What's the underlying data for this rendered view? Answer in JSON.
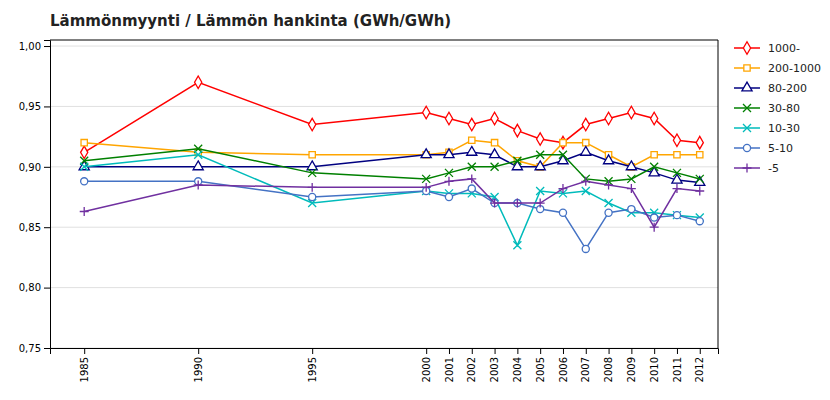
{
  "chart_data": {
    "type": "line",
    "title": "Lämmönmyynti / Lämmön hankinta (GWh/GWh)",
    "x": [
      1985,
      1990,
      1995,
      2000,
      2001,
      2002,
      2003,
      2004,
      2005,
      2006,
      2007,
      2008,
      2009,
      2010,
      2011,
      2012
    ],
    "series": [
      {
        "name": "1000-",
        "color": "#FF0000",
        "marker": "diamond",
        "values": [
          0.912,
          0.97,
          0.935,
          0.945,
          0.94,
          0.935,
          0.94,
          0.93,
          0.923,
          0.92,
          0.935,
          0.94,
          0.945,
          0.94,
          0.922,
          0.92
        ]
      },
      {
        "name": "200-1000",
        "color": "#FFA500",
        "marker": "square",
        "values": [
          0.92,
          0.912,
          0.91,
          0.91,
          0.912,
          0.922,
          0.92,
          0.905,
          0.9,
          0.92,
          0.92,
          0.91,
          0.9,
          0.91,
          0.91,
          0.91
        ]
      },
      {
        "name": "80-200",
        "color": "#000080",
        "marker": "triangle",
        "values": [
          0.9,
          0.9,
          0.9,
          0.91,
          0.91,
          0.912,
          0.91,
          0.9,
          0.9,
          0.905,
          0.912,
          0.905,
          0.9,
          0.895,
          0.889,
          0.887
        ]
      },
      {
        "name": "30-80",
        "color": "#008000",
        "marker": "x",
        "values": [
          0.905,
          0.915,
          0.895,
          0.89,
          0.895,
          0.9,
          0.9,
          0.905,
          0.91,
          0.91,
          0.89,
          0.888,
          0.89,
          0.9,
          0.895,
          0.89
        ]
      },
      {
        "name": "10-30",
        "color": "#00BBBB",
        "marker": "x",
        "values": [
          0.9,
          0.91,
          0.87,
          0.88,
          0.878,
          0.878,
          0.875,
          0.835,
          0.88,
          0.878,
          0.88,
          0.87,
          0.862,
          0.862,
          0.86,
          0.858
        ]
      },
      {
        "name": "5-10",
        "color": "#4472C4",
        "marker": "circle",
        "values": [
          0.888,
          0.888,
          0.875,
          0.88,
          0.875,
          0.882,
          0.87,
          0.87,
          0.865,
          0.862,
          0.832,
          0.862,
          0.865,
          0.858,
          0.86,
          0.855
        ]
      },
      {
        "name": "-5",
        "color": "#7030A0",
        "marker": "plus",
        "values": [
          0.863,
          0.885,
          0.883,
          0.883,
          0.888,
          0.89,
          0.87,
          0.87,
          0.87,
          0.882,
          0.888,
          0.885,
          0.882,
          0.85,
          0.882,
          0.88
        ]
      }
    ],
    "xlim": [
      1983.5,
      2012.8
    ],
    "xticks": [
      1985,
      1990,
      1995,
      2000,
      2001,
      2002,
      2003,
      2004,
      2005,
      2006,
      2007,
      2008,
      2009,
      2010,
      2011,
      2012
    ],
    "ylim": [
      0.75,
      1.005
    ],
    "yticks": [
      {
        "value": 0.75,
        "label": "0,75"
      },
      {
        "value": 0.8,
        "label": "0,80"
      },
      {
        "value": 0.85,
        "label": "0,85"
      },
      {
        "value": 0.9,
        "label": "0,90"
      },
      {
        "value": 0.95,
        "label": "0,95"
      },
      {
        "value": 1.0,
        "label": "1,00"
      }
    ],
    "grid": true,
    "legend": "right"
  }
}
